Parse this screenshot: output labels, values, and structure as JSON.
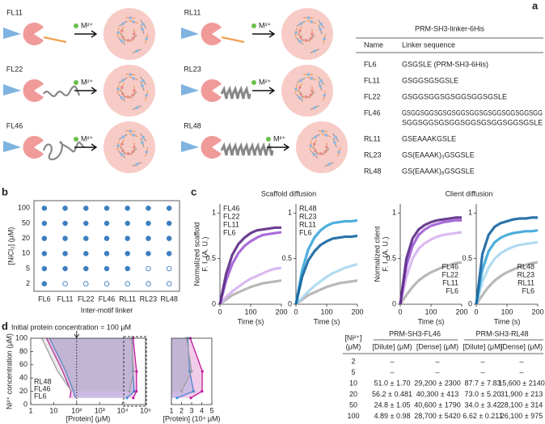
{
  "panel_a": {
    "letter": "a",
    "constructs": [
      "FL11",
      "FL22",
      "FL46",
      "RL11",
      "RL23",
      "RL48"
    ],
    "ion": "M²⁺",
    "table": {
      "title": "PRM-SH3-linker-6His",
      "headers": [
        "Name",
        "Linker sequence"
      ],
      "rows": [
        {
          "name": "FL6",
          "sequence": [
            "GSGSLE (PRM-SH3-6His)"
          ]
        },
        {
          "name": "FL11",
          "sequence": [
            "GSGGSGSGSLE"
          ]
        },
        {
          "name": "FL22",
          "sequence": [
            "GSGGSGGSGSGGSGGSGSLE"
          ]
        },
        {
          "name": "FL46",
          "sequence": [
            "GSGGSGGSGSGSGGSGGSGSGGSGGSGGSGG",
            "SGGSGGSGSGGSGGSGSGGSGGSGSLE"
          ]
        },
        {
          "name": "RL11",
          "sequence": [
            "GSEAAAKGSLE"
          ]
        },
        {
          "name": "RL23",
          "sequence": [
            "GS(EAAAK)₃GSGSLE"
          ]
        },
        {
          "name": "RL48",
          "sequence": [
            "GS(EAAAK)₈GSGSLE"
          ]
        }
      ]
    }
  },
  "chart_data": [
    {
      "type": "dot-matrix",
      "letter": "b",
      "xlabel": "Inter-motif linker",
      "ylabel": "[NiCl₂] (μM)",
      "color": "#3d7fc0",
      "categories": [
        "FL6",
        "FL11",
        "FL22",
        "FL46",
        "RL11",
        "RL23",
        "RL48"
      ],
      "y_categories": [
        2,
        5,
        10,
        20,
        50,
        100
      ],
      "values": [
        [
          1,
          0,
          0,
          0,
          0,
          0,
          0
        ],
        [
          1,
          1,
          1,
          1,
          1,
          0,
          0
        ],
        [
          1,
          1,
          1,
          1,
          1,
          1,
          1
        ],
        [
          1,
          1,
          1,
          1,
          1,
          1,
          1
        ],
        [
          1,
          1,
          1,
          1,
          1,
          1,
          1
        ],
        [
          1,
          1,
          1,
          1,
          1,
          1,
          1
        ]
      ]
    },
    {
      "type": "line",
      "letter": "c",
      "title": "Scaffold diffusion",
      "ylabel": [
        "Normalized scaffold",
        "F. I. (A. U.)"
      ],
      "xlabel": "Time (s)",
      "xlim": [
        0,
        200
      ],
      "xticks": [
        0,
        100,
        200
      ],
      "ylim": [
        0,
        1.1
      ],
      "yticks": [
        0,
        0.5,
        1
      ],
      "legend": "upper left",
      "x": [
        0,
        20,
        40,
        60,
        80,
        100,
        120,
        140,
        160,
        180,
        200
      ],
      "series": [
        {
          "name": "FL46",
          "color": "#5b2a86",
          "values": [
            0,
            0.33,
            0.54,
            0.66,
            0.73,
            0.78,
            0.81,
            0.82,
            0.83,
            0.84,
            0.84
          ]
        },
        {
          "name": "FL22",
          "color": "#a05cd6",
          "values": [
            0,
            0.26,
            0.44,
            0.56,
            0.64,
            0.69,
            0.73,
            0.76,
            0.77,
            0.78,
            0.79
          ]
        },
        {
          "name": "FL11",
          "color": "#d6b3f0",
          "values": [
            0,
            0.08,
            0.14,
            0.19,
            0.24,
            0.28,
            0.31,
            0.34,
            0.37,
            0.39,
            0.4
          ]
        },
        {
          "name": "FL6",
          "color": "#b0b0b0",
          "values": [
            0,
            0.05,
            0.1,
            0.13,
            0.16,
            0.19,
            0.21,
            0.23,
            0.24,
            0.25,
            0.26
          ]
        }
      ]
    },
    {
      "type": "line",
      "xlabel": "Time (s)",
      "xlim": [
        0,
        200
      ],
      "xticks": [
        0,
        100,
        200
      ],
      "ylim": [
        0,
        1.1
      ],
      "yticks": [
        0,
        0.5,
        1
      ],
      "legend": "upper left",
      "x": [
        0,
        20,
        40,
        60,
        80,
        100,
        120,
        140,
        160,
        180,
        200
      ],
      "series": [
        {
          "name": "RL48",
          "color": "#1565a0",
          "values": [
            0,
            0.3,
            0.48,
            0.58,
            0.65,
            0.69,
            0.72,
            0.73,
            0.74,
            0.74,
            0.75
          ]
        },
        {
          "name": "RL23",
          "color": "#3aa5d8",
          "values": [
            0,
            0.37,
            0.6,
            0.73,
            0.81,
            0.86,
            0.89,
            0.9,
            0.91,
            0.91,
            0.92
          ]
        },
        {
          "name": "RL11",
          "color": "#a9d8f0",
          "values": [
            0,
            0.07,
            0.14,
            0.2,
            0.25,
            0.3,
            0.34,
            0.37,
            0.4,
            0.42,
            0.44
          ]
        },
        {
          "name": "FL6",
          "color": "#b0b0b0",
          "values": [
            0,
            0.05,
            0.1,
            0.13,
            0.16,
            0.19,
            0.21,
            0.23,
            0.24,
            0.25,
            0.26
          ]
        }
      ]
    },
    {
      "type": "line",
      "title": "Client diffusion",
      "ylabel": [
        "Normalized client",
        "F. I. (A. U.)"
      ],
      "xlabel": "Time (s)",
      "xlim": [
        0,
        200
      ],
      "xticks": [
        0,
        100,
        200
      ],
      "ylim": [
        0,
        1.1
      ],
      "yticks": [
        0,
        0.5,
        1
      ],
      "legend": "lower right",
      "x": [
        0,
        20,
        40,
        60,
        80,
        100,
        120,
        140,
        160,
        180,
        200
      ],
      "series": [
        {
          "name": "FL46",
          "color": "#5b2a86",
          "values": [
            0,
            0.5,
            0.72,
            0.82,
            0.87,
            0.9,
            0.92,
            0.93,
            0.94,
            0.95,
            0.95
          ]
        },
        {
          "name": "FL22",
          "color": "#a05cd6",
          "values": [
            0,
            0.42,
            0.64,
            0.76,
            0.82,
            0.86,
            0.88,
            0.9,
            0.91,
            0.92,
            0.92
          ]
        },
        {
          "name": "FL11",
          "color": "#d6b3f0",
          "values": [
            0,
            0.3,
            0.5,
            0.61,
            0.67,
            0.71,
            0.74,
            0.76,
            0.77,
            0.78,
            0.79
          ]
        },
        {
          "name": "FL6",
          "color": "#b0b0b0",
          "values": [
            0,
            0.1,
            0.19,
            0.26,
            0.31,
            0.35,
            0.38,
            0.41,
            0.43,
            0.45,
            0.46
          ]
        }
      ]
    },
    {
      "type": "line",
      "xlabel": "Time (s)",
      "xlim": [
        0,
        200
      ],
      "xticks": [
        0,
        100,
        200
      ],
      "ylim": [
        0,
        1.1
      ],
      "yticks": [
        0,
        0.5,
        1
      ],
      "legend": "lower right",
      "x": [
        0,
        20,
        40,
        60,
        80,
        100,
        120,
        140,
        160,
        180,
        200
      ],
      "series": [
        {
          "name": "RL48",
          "color": "#1565a0",
          "values": [
            0,
            0.55,
            0.76,
            0.85,
            0.89,
            0.91,
            0.93,
            0.94,
            0.94,
            0.95,
            0.95
          ]
        },
        {
          "name": "RL23",
          "color": "#3aa5d8",
          "values": [
            0,
            0.38,
            0.58,
            0.68,
            0.73,
            0.76,
            0.78,
            0.79,
            0.8,
            0.8,
            0.81
          ]
        },
        {
          "name": "RL11",
          "color": "#a9d8f0",
          "values": [
            0,
            0.25,
            0.4,
            0.5,
            0.56,
            0.6,
            0.63,
            0.65,
            0.66,
            0.67,
            0.68
          ]
        },
        {
          "name": "FL6",
          "color": "#b0b0b0",
          "values": [
            0,
            0.1,
            0.19,
            0.26,
            0.31,
            0.35,
            0.38,
            0.41,
            0.43,
            0.45,
            0.46
          ]
        }
      ]
    },
    {
      "type": "phase",
      "letter": "d",
      "xlabel": "[Protein] (μM)",
      "ylabel": "Ni²⁺ concentration (μM)",
      "log_x": true,
      "xlim": [
        1,
        100000
      ],
      "xticks": [
        1,
        10,
        {
          "value": 100,
          "label": "10²"
        },
        {
          "value": 1000,
          "label": "10³"
        },
        {
          "value": 10000,
          "label": "10⁴"
        },
        {
          "value": 100000,
          "label": "10⁵"
        }
      ],
      "ylim": [
        0,
        100
      ],
      "yticks": [
        0,
        20,
        40,
        60,
        80,
        100
      ],
      "annotation": "Initial protein concentration = 100 μM",
      "annotation_x": 100,
      "series": [
        {
          "name": "RL48",
          "color": "#2aa0e0",
          "y": [
            10,
            20,
            50,
            100
          ],
          "dilute": [
            87.7,
            73.0,
            34.0,
            6.62
          ],
          "dense": [
            15600,
            31900,
            28100,
            26100
          ]
        },
        {
          "name": "FL46",
          "color": "#c0189a",
          "y": [
            10,
            20,
            50,
            100
          ],
          "dilute": [
            51.0,
            56.2,
            24.8,
            4.89
          ],
          "dense": [
            29200,
            40300,
            40600,
            28700
          ]
        },
        {
          "name": "FL6",
          "color": "#a0a0a0",
          "y": [
            20,
            50,
            100
          ],
          "dilute": [
            60,
            15,
            3
          ],
          "dense": [
            20000,
            30000,
            25000
          ]
        }
      ]
    },
    {
      "type": "phase",
      "xlabel": "[Protein] (10⁴ μM)",
      "xlim": [
        1,
        5
      ],
      "xticks": [
        1,
        2,
        3,
        4,
        5
      ],
      "ylim": [
        0,
        100
      ],
      "series": [
        {
          "name": "RL48",
          "color": "#2aa0e0",
          "y": [
            10,
            20,
            50,
            100
          ],
          "dense": [
            1.56,
            3.19,
            2.81,
            2.61
          ]
        },
        {
          "name": "FL46",
          "color": "#c0189a",
          "y": [
            10,
            20,
            50,
            100
          ],
          "dense": [
            2.92,
            4.03,
            4.06,
            2.87
          ]
        },
        {
          "name": "FL6",
          "color": "#a0a0a0",
          "y": [
            20,
            50,
            100
          ],
          "dense": [
            2.0,
            3.0,
            2.5
          ]
        }
      ]
    }
  ],
  "panel_d_table": {
    "headers": [
      "[Ni²⁺]",
      "(μM)",
      "PRM-SH3-FL46",
      "PRM-SH3-RL48",
      "[Dilute] (μM)",
      "[Dense] (μM)",
      "[Dilute] (μM)",
      "[Dense] (μM)"
    ],
    "rows": [
      [
        "2",
        "–",
        "–",
        "–",
        "–"
      ],
      [
        "5",
        "–",
        "–",
        "–",
        "–"
      ],
      [
        "10",
        "51.0 ± 1.70",
        "29,200 ± 2300",
        "87.7 ± 7.83",
        "15,600 ± 2140"
      ],
      [
        "20",
        "56.2 ± 0.481",
        "40,300 ± 413",
        "73.0 ± 5.20",
        "31,900 ± 213"
      ],
      [
        "50",
        "24.8 ± 1.05",
        "40,600 ± 1790",
        "34.0 ± 3.42",
        "28,100 ± 314"
      ],
      [
        "100",
        "4.89 ± 0.98",
        "28,700 ± 5420",
        "6.62 ± 0.211",
        "26,100 ± 975"
      ]
    ]
  }
}
